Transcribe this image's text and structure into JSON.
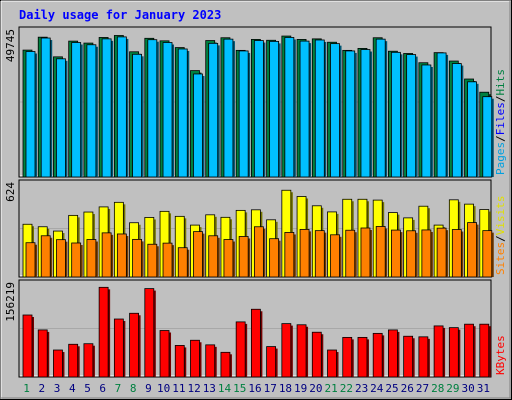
{
  "chart_data": [
    {
      "type": "bar",
      "title": "Daily usage for January 2023",
      "categories": [
        "1",
        "2",
        "3",
        "4",
        "5",
        "6",
        "7",
        "8",
        "9",
        "10",
        "11",
        "12",
        "13",
        "14",
        "15",
        "16",
        "17",
        "18",
        "19",
        "20",
        "21",
        "22",
        "23",
        "24",
        "25",
        "26",
        "27",
        "28",
        "29",
        "30",
        "31"
      ],
      "weekend_days": [
        "1",
        "7",
        "8",
        "14",
        "15",
        "21",
        "22",
        "28",
        "29"
      ],
      "ylabel_max": "49745",
      "ymax": 52000,
      "legend_right": [
        "Pages",
        "/",
        "Files",
        "/",
        "Hits"
      ],
      "series": [
        {
          "name": "Hits",
          "color": "#008040",
          "values": [
            45200,
            49800,
            42800,
            48400,
            47700,
            49700,
            50400,
            44600,
            49400,
            48500,
            46100,
            37900,
            48600,
            49600,
            45100,
            49000,
            48700,
            50200,
            49000,
            49200,
            48000,
            45100,
            45800,
            49600,
            44800,
            44000,
            40700,
            44300,
            41300,
            34900,
            30200
          ]
        },
        {
          "name": "Files",
          "color": "#00c0ff",
          "values": [
            44700,
            49500,
            42100,
            47900,
            47100,
            49200,
            49900,
            43700,
            48900,
            47900,
            45600,
            36700,
            47600,
            49100,
            44900,
            48600,
            48300,
            49700,
            48400,
            48800,
            47500,
            44900,
            45400,
            49100,
            44400,
            43600,
            39900,
            44200,
            40400,
            33900,
            28600
          ]
        },
        {
          "name": "Pages",
          "color": "#00a0e0",
          "values": [
            0,
            0,
            0,
            0,
            0,
            0,
            0,
            0,
            0,
            0,
            0,
            0,
            0,
            0,
            0,
            0,
            0,
            0,
            0,
            0,
            0,
            0,
            0,
            0,
            0,
            0,
            0,
            0,
            0,
            0,
            0
          ]
        }
      ]
    },
    {
      "type": "bar",
      "ylabel_max": "624",
      "ymax": 670,
      "legend_right": [
        "Sites",
        "/",
        "Visits"
      ],
      "series": [
        {
          "name": "Visits",
          "color": "#ffff00",
          "values": [
            380,
            362,
            331,
            444,
            468,
            505,
            538,
            391,
            429,
            473,
            437,
            374,
            448,
            430,
            480,
            484,
            412,
            625,
            580,
            513,
            469,
            560,
            560,
            554,
            464,
            426,
            510,
            374,
            556,
            525,
            486
          ]
        },
        {
          "name": "Sites",
          "color": "#ff8000",
          "values": [
            247,
            297,
            269,
            245,
            270,
            318,
            310,
            271,
            236,
            244,
            211,
            327,
            297,
            270,
            292,
            362,
            276,
            321,
            343,
            334,
            304,
            337,
            353,
            364,
            338,
            333,
            339,
            352,
            342,
            392,
            334
          ]
        }
      ]
    },
    {
      "type": "bar",
      "ylabel_max": "156219",
      "ymax": 162000,
      "legend_right": [
        "KBytes"
      ],
      "series": [
        {
          "name": "KBytes",
          "color": "#ff0000",
          "values": [
            108000,
            82000,
            47000,
            57000,
            58000,
            156219,
            101000,
            111000,
            154000,
            81000,
            55000,
            64000,
            56000,
            43000,
            96000,
            118000,
            53000,
            93000,
            91000,
            78000,
            47000,
            69000,
            69000,
            76000,
            82000,
            71000,
            70000,
            89000,
            86000,
            92000,
            92000
          ]
        }
      ]
    }
  ]
}
